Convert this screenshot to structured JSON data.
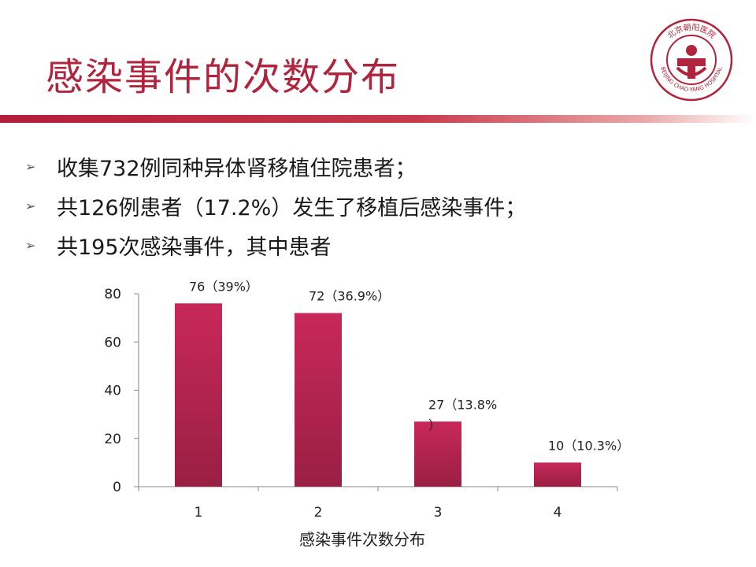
{
  "slide": {
    "title": "感染事件的次数分布",
    "bullets": [
      "收集732例同种异体肾移植住院患者；",
      "共126例患者（17.2%）发生了移植后感染事件；",
      "共195次感染事件，其中患者"
    ],
    "logo": {
      "arc_text": "北京朝阳医院",
      "en_text": "BEIJING CHAO-YANG HOSPITAL"
    }
  },
  "colors": {
    "accent": "#b0243e",
    "bar": "#b4254f"
  },
  "chart_data": {
    "type": "bar",
    "categories": [
      "1",
      "2",
      "3",
      "4"
    ],
    "values": [
      76,
      72,
      27,
      10
    ],
    "data_labels": [
      "76（39%）",
      "72（36.9%）",
      "27（13.8%\n）",
      "10（10.3%）"
    ],
    "xlabel": "感染事件次数分布",
    "ylabel": "",
    "ylim": [
      0,
      80
    ],
    "yticks": [
      0,
      20,
      40,
      60,
      80
    ],
    "grid": false,
    "legend": "none"
  }
}
